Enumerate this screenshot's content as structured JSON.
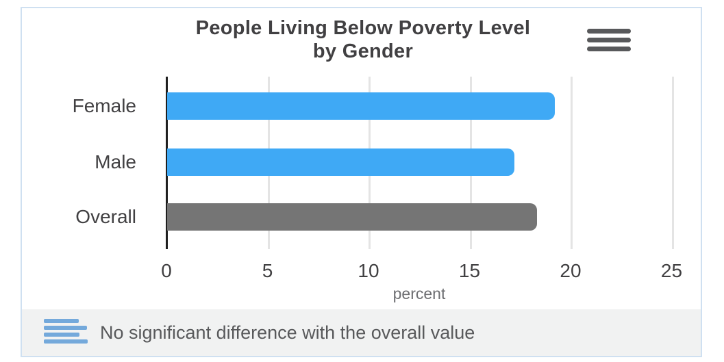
{
  "chart_data": {
    "type": "bar",
    "orientation": "horizontal",
    "title": "People Living Below Poverty Level by Gender",
    "title_lines": [
      "People Living Below Poverty Level",
      "by Gender"
    ],
    "categories": [
      "Female",
      "Male",
      "Overall"
    ],
    "values": [
      19.2,
      17.2,
      18.3
    ],
    "bar_colors": [
      "#3fa9f5",
      "#3fa9f5",
      "#757575"
    ],
    "xlabel": "percent",
    "xlim": [
      0,
      25
    ],
    "xticks": [
      0,
      5,
      10,
      15,
      20,
      25
    ],
    "grid": true,
    "legend_position": "none"
  },
  "header": {
    "menu_icon": "hamburger-menu-icon"
  },
  "footer": {
    "note": "No significant difference with the overall value",
    "legend_icon": "mini-bar-chart-icon",
    "legend_icon_bar_widths": [
      51,
      63,
      52,
      64
    ]
  },
  "colors": {
    "bar_blue": "#3fa9f5",
    "bar_gray": "#757575",
    "title_text": "#414042",
    "axis_text": "#414042",
    "xlabel_text": "#6d6e71",
    "gridline": "#e4e4e4",
    "axis_line": "#1f1f1f",
    "card_border": "#cfe0f1",
    "footer_bg": "#f1f2f2",
    "footer_text": "#58595b",
    "menu_icon": "#58595b",
    "legend_icon_blue": "#74a9db"
  }
}
